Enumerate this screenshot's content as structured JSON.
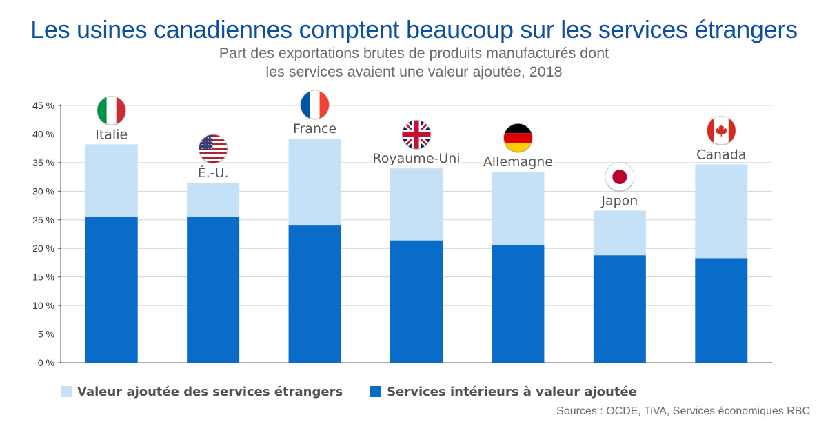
{
  "header": {
    "title": "Les usines canadiennes comptent beaucoup sur les services étrangers",
    "subtitle_line1": "Part des exportations brutes de produits manufacturés dont",
    "subtitle_line2": "les services avaient une valeur ajoutée, 2018"
  },
  "source": "Sources : OCDE, TiVA, Services économiques RBC",
  "colors": {
    "foreign": "#c5e1f7",
    "domestic": "#0a6cc9"
  },
  "chart_data": {
    "type": "bar",
    "stacked": true,
    "categories": [
      "Italie",
      "É.-U.",
      "France",
      "Royaume-Uni",
      "Allemagne",
      "Japon",
      "Canada"
    ],
    "flags": [
      "italy-flag",
      "usa-flag",
      "france-flag",
      "uk-flag",
      "germany-flag",
      "japan-flag",
      "canada-flag"
    ],
    "series": [
      {
        "name": "Services intérieurs à valeur ajoutée",
        "values": [
          25.5,
          25.5,
          24.0,
          21.4,
          20.6,
          18.8,
          18.3
        ]
      },
      {
        "name": "Valeur ajoutée des services étrangers",
        "values": [
          12.7,
          6.0,
          15.2,
          12.6,
          12.8,
          7.8,
          16.4
        ]
      }
    ],
    "totals": [
      38.2,
      31.5,
      39.2,
      34.0,
      33.4,
      26.6,
      34.7
    ],
    "ylim": [
      0,
      45
    ],
    "yticks": [
      "0 %",
      "5 %",
      "10 %",
      "15 %",
      "20 %",
      "25 %",
      "30 %",
      "35 %",
      "40 %",
      "45 %"
    ],
    "grid": true,
    "legend": [
      {
        "label": "Valeur ajoutée des services étrangers",
        "color": "#c5e1f7"
      },
      {
        "label": "Services intérieurs à valeur ajoutée",
        "color": "#0a6cc9"
      }
    ],
    "legend_position": "bottom-left"
  }
}
